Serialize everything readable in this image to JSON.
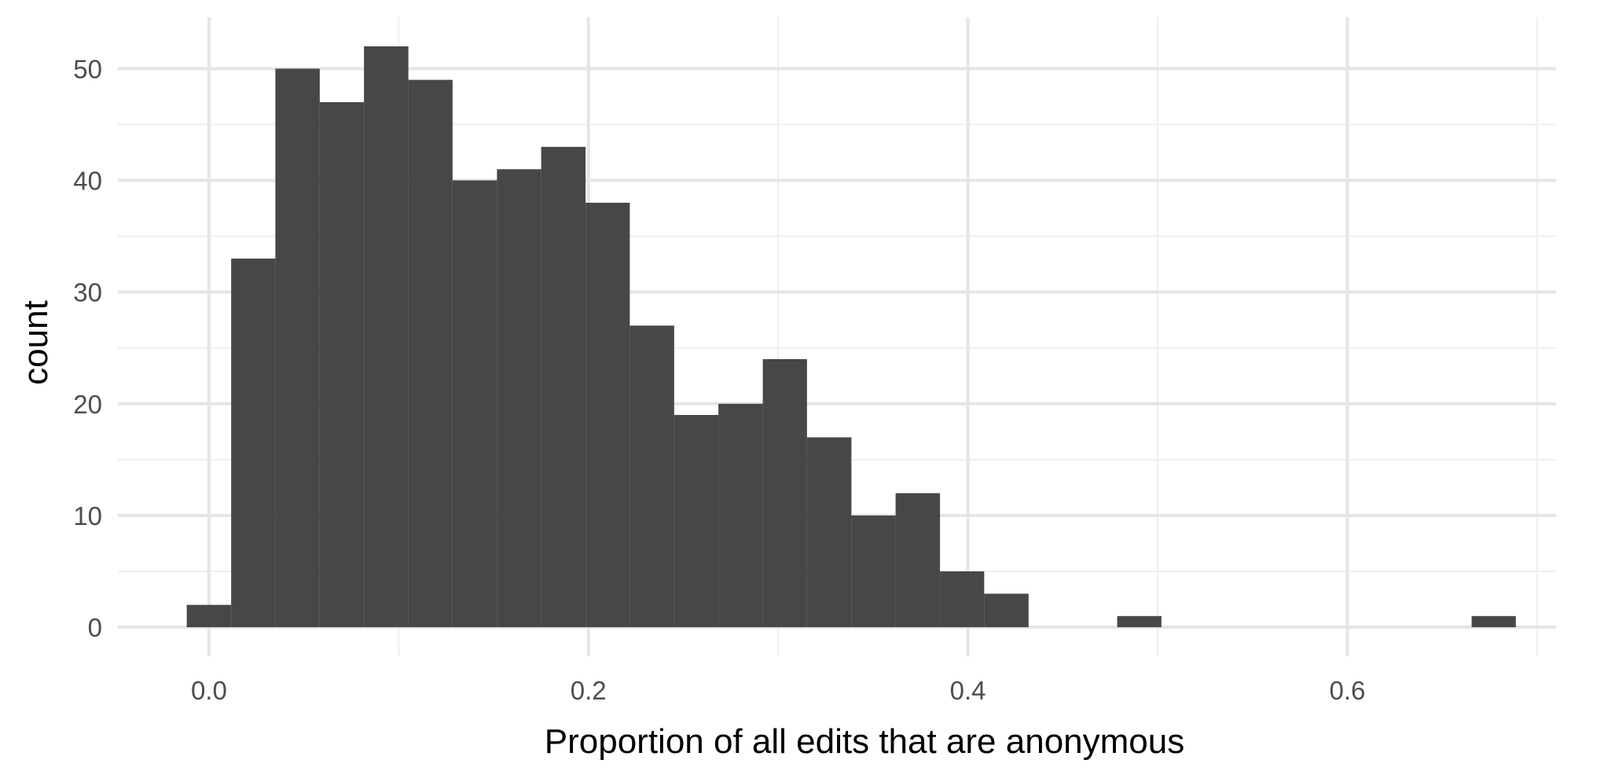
{
  "chart_data": {
    "type": "bar",
    "subtype": "histogram",
    "xlabel": "Proportion of all edits that are anonymous",
    "ylabel": "count",
    "xlim": [
      -0.048,
      0.71
    ],
    "ylim": [
      -2.6,
      54.6
    ],
    "x_ticks": [
      0.0,
      0.2,
      0.4,
      0.6
    ],
    "x_tick_labels": [
      "0.0",
      "0.2",
      "0.4",
      "0.6"
    ],
    "y_ticks": [
      0,
      10,
      20,
      30,
      40,
      50
    ],
    "y_tick_labels": [
      "0",
      "10",
      "20",
      "30",
      "40",
      "50"
    ],
    "grid": true,
    "bar_color": "#474747",
    "bins": [
      {
        "start": -0.0117,
        "end": 0.0117,
        "count": 2
      },
      {
        "start": 0.0117,
        "end": 0.035,
        "count": 33
      },
      {
        "start": 0.035,
        "end": 0.0584,
        "count": 50
      },
      {
        "start": 0.0584,
        "end": 0.0817,
        "count": 47
      },
      {
        "start": 0.0817,
        "end": 0.1051,
        "count": 52
      },
      {
        "start": 0.1051,
        "end": 0.1284,
        "count": 49
      },
      {
        "start": 0.1284,
        "end": 0.1518,
        "count": 40
      },
      {
        "start": 0.1518,
        "end": 0.1751,
        "count": 41
      },
      {
        "start": 0.1751,
        "end": 0.1985,
        "count": 43
      },
      {
        "start": 0.1985,
        "end": 0.2218,
        "count": 38
      },
      {
        "start": 0.2218,
        "end": 0.2452,
        "count": 27
      },
      {
        "start": 0.2452,
        "end": 0.2685,
        "count": 19
      },
      {
        "start": 0.2685,
        "end": 0.2919,
        "count": 20
      },
      {
        "start": 0.2919,
        "end": 0.3152,
        "count": 24
      },
      {
        "start": 0.3152,
        "end": 0.3386,
        "count": 17
      },
      {
        "start": 0.3386,
        "end": 0.3619,
        "count": 10
      },
      {
        "start": 0.3619,
        "end": 0.3853,
        "count": 12
      },
      {
        "start": 0.3853,
        "end": 0.4086,
        "count": 5
      },
      {
        "start": 0.4086,
        "end": 0.432,
        "count": 3
      },
      {
        "start": 0.432,
        "end": 0.4553,
        "count": 0
      },
      {
        "start": 0.4553,
        "end": 0.4787,
        "count": 0
      },
      {
        "start": 0.4787,
        "end": 0.502,
        "count": 1
      },
      {
        "start": 0.502,
        "end": 0.5254,
        "count": 0
      },
      {
        "start": 0.5254,
        "end": 0.5487,
        "count": 0
      },
      {
        "start": 0.5487,
        "end": 0.5721,
        "count": 0
      },
      {
        "start": 0.5721,
        "end": 0.5954,
        "count": 0
      },
      {
        "start": 0.5954,
        "end": 0.6188,
        "count": 0
      },
      {
        "start": 0.6188,
        "end": 0.6421,
        "count": 0
      },
      {
        "start": 0.6421,
        "end": 0.6655,
        "count": 0
      },
      {
        "start": 0.6655,
        "end": 0.6888,
        "count": 1
      }
    ]
  }
}
